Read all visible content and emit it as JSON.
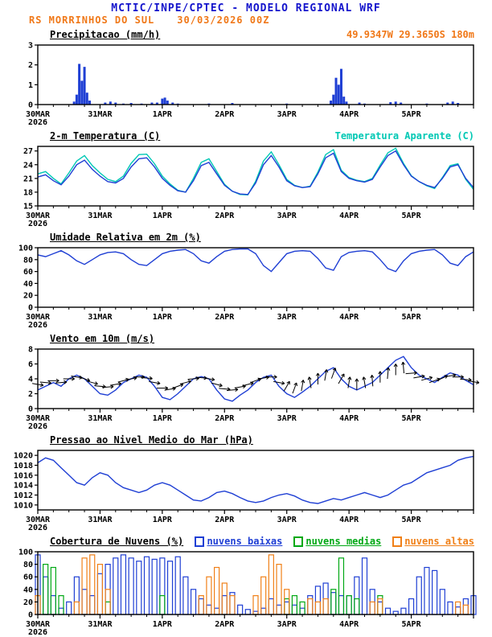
{
  "header": {
    "title": "MCTIC/INPE/CPTEC - MODELO REGIONAL WRF",
    "station": "RS MORRINHOS DO SUL",
    "run": "30/03/2026 00Z",
    "coordinates": "49.9347W 29.3650S 180m"
  },
  "colors": {
    "title_blue": "#1414cc",
    "orange": "#f07818",
    "line_blue": "#1f3fd4",
    "cyan": "#00c8b4",
    "green": "#00a814",
    "black": "#000000"
  },
  "x_axis": {
    "hours_total": 168,
    "tick_labels": [
      "30MAR",
      "31MAR",
      "1APR",
      "2APR",
      "3APR",
      "4APR",
      "5APR"
    ],
    "year_label": "2026"
  },
  "chart_data": [
    {
      "id": "precipitation",
      "type": "bar",
      "title": "Precipitacao (mm/h)",
      "ylim": [
        0,
        3
      ],
      "yticks": [
        0,
        1,
        2,
        3
      ],
      "series": [
        {
          "name": "precipitacao",
          "color": "#1f3fd4",
          "points": [
            [
              14,
              0.15
            ],
            [
              15,
              0.5
            ],
            [
              16,
              2.05
            ],
            [
              17,
              1.2
            ],
            [
              18,
              1.9
            ],
            [
              19,
              0.6
            ],
            [
              20,
              0.2
            ],
            [
              26,
              0.1
            ],
            [
              28,
              0.15
            ],
            [
              30,
              0.1
            ],
            [
              33,
              0.05
            ],
            [
              36,
              0.08
            ],
            [
              40,
              0.05
            ],
            [
              44,
              0.1
            ],
            [
              46,
              0.1
            ],
            [
              48,
              0.3
            ],
            [
              49,
              0.35
            ],
            [
              50,
              0.2
            ],
            [
              52,
              0.1
            ],
            [
              54,
              0.05
            ],
            [
              66,
              0.05
            ],
            [
              75,
              0.08
            ],
            [
              96,
              0.05
            ],
            [
              113,
              0.2
            ],
            [
              114,
              0.5
            ],
            [
              115,
              1.35
            ],
            [
              116,
              1.0
            ],
            [
              117,
              1.8
            ],
            [
              118,
              0.4
            ],
            [
              119,
              0.15
            ],
            [
              124,
              0.1
            ],
            [
              126,
              0.05
            ],
            [
              136,
              0.12
            ],
            [
              138,
              0.15
            ],
            [
              140,
              0.1
            ],
            [
              150,
              0.05
            ],
            [
              158,
              0.1
            ],
            [
              160,
              0.15
            ],
            [
              162,
              0.08
            ]
          ]
        }
      ]
    },
    {
      "id": "temperature",
      "type": "line",
      "title": "2-m Temperatura (C)",
      "right_label": "Temperatura Aparente (C)",
      "ylim": [
        15,
        28
      ],
      "yticks": [
        15,
        18,
        21,
        24,
        27
      ],
      "step_hours": 3,
      "series": [
        {
          "name": "Temperatura Aparente (C)",
          "color": "#00c8b4",
          "values": [
            22.0,
            22.5,
            21.0,
            19.8,
            22.2,
            24.8,
            26.0,
            23.8,
            22.2,
            20.8,
            20.3,
            21.5,
            24.3,
            26.2,
            26.3,
            24.2,
            21.5,
            19.8,
            18.4,
            18.0,
            21.0,
            24.5,
            25.3,
            22.5,
            19.7,
            18.2,
            17.5,
            17.4,
            20.4,
            24.8,
            26.8,
            24.0,
            20.8,
            19.5,
            19.0,
            19.3,
            22.4,
            26.2,
            27.3,
            22.8,
            21.2,
            20.6,
            20.3,
            21.0,
            23.9,
            26.6,
            27.6,
            24.3,
            21.6,
            20.3,
            19.4,
            18.8,
            21.2,
            23.8,
            24.2,
            20.8,
            18.6
          ]
        },
        {
          "name": "2-m Temperatura (C)",
          "color": "#1f3fd4",
          "values": [
            21.3,
            21.8,
            20.5,
            19.6,
            21.5,
            24.0,
            25.0,
            23.0,
            21.5,
            20.3,
            20.0,
            21.0,
            23.5,
            25.3,
            25.5,
            23.5,
            21.0,
            19.5,
            18.3,
            18.0,
            20.5,
            23.8,
            24.5,
            22.0,
            19.5,
            18.2,
            17.6,
            17.5,
            20.0,
            24.0,
            26.0,
            23.5,
            20.5,
            19.4,
            19.0,
            19.2,
            22.0,
            25.5,
            26.5,
            22.5,
            21.0,
            20.5,
            20.2,
            20.8,
            23.5,
            26.0,
            27.0,
            24.0,
            21.5,
            20.3,
            19.5,
            19.0,
            21.0,
            23.5,
            24.0,
            21.0,
            19.0
          ]
        }
      ]
    },
    {
      "id": "humidity",
      "type": "line",
      "title": "Umidade Relativa em 2m (%)",
      "ylim": [
        0,
        100
      ],
      "yticks": [
        0,
        20,
        40,
        60,
        80,
        100
      ],
      "step_hours": 3,
      "series": [
        {
          "name": "umidade relativa",
          "color": "#1f3fd4",
          "values": [
            88,
            85,
            90,
            95,
            88,
            78,
            72,
            80,
            88,
            92,
            93,
            90,
            80,
            72,
            70,
            80,
            90,
            94,
            96,
            97,
            90,
            78,
            74,
            85,
            94,
            97,
            98,
            98,
            90,
            70,
            60,
            75,
            90,
            94,
            95,
            94,
            82,
            66,
            62,
            85,
            92,
            94,
            95,
            93,
            80,
            65,
            60,
            78,
            90,
            94,
            96,
            97,
            88,
            74,
            70,
            85,
            93
          ]
        }
      ]
    },
    {
      "id": "wind",
      "type": "line",
      "title": "Vento em 10m (m/s)",
      "ylim": [
        0,
        8
      ],
      "yticks": [
        0,
        2,
        4,
        6,
        8
      ],
      "step_hours": 3,
      "series": [
        {
          "name": "vento 10m",
          "color": "#1f3fd4",
          "values": [
            2.5,
            3.0,
            3.5,
            3.0,
            4.0,
            4.5,
            4.0,
            3.0,
            2.0,
            1.8,
            2.5,
            3.5,
            4.0,
            4.5,
            4.2,
            3.0,
            1.5,
            1.2,
            2.0,
            3.0,
            4.0,
            4.3,
            4.0,
            2.5,
            1.3,
            1.0,
            1.8,
            2.5,
            3.5,
            4.2,
            4.5,
            3.0,
            2.0,
            1.5,
            2.2,
            3.0,
            4.0,
            5.0,
            5.5,
            4.0,
            3.0,
            2.5,
            3.0,
            3.5,
            4.5,
            5.5,
            6.5,
            7.0,
            5.5,
            4.5,
            4.0,
            3.5,
            4.2,
            4.8,
            4.5,
            3.8,
            3.2
          ]
        }
      ],
      "arrows": {
        "color": "#000000",
        "dirs_deg": [
          100,
          95,
          90,
          85,
          90,
          100,
          110,
          105,
          95,
          85,
          80,
          75,
          80,
          90,
          95,
          100,
          90,
          80,
          70,
          75,
          85,
          95,
          100,
          105,
          95,
          85,
          80,
          75,
          70,
          80,
          90,
          100,
          30,
          20,
          10,
          350,
          0,
          10,
          20,
          30,
          10,
          0,
          350,
          355,
          0,
          5,
          0,
          355,
          85,
          80,
          75,
          70,
          65,
          80,
          90,
          95,
          100
        ]
      }
    },
    {
      "id": "pressure",
      "type": "line",
      "title": "Pressao ao Nivel Medio do Mar (hPa)",
      "ylim": [
        1009,
        1021
      ],
      "yticks": [
        1010,
        1012,
        1014,
        1016,
        1018,
        1020
      ],
      "step_hours": 3,
      "series": [
        {
          "name": "pressao nivel do mar",
          "color": "#1f3fd4",
          "values": [
            1018.5,
            1019.5,
            1019.0,
            1017.5,
            1016.0,
            1014.5,
            1014.0,
            1015.5,
            1016.5,
            1016.0,
            1014.5,
            1013.5,
            1013.0,
            1012.5,
            1013.0,
            1014.0,
            1014.5,
            1014.0,
            1013.0,
            1012.0,
            1011.0,
            1010.8,
            1011.5,
            1012.5,
            1012.8,
            1012.3,
            1011.5,
            1010.8,
            1010.5,
            1010.8,
            1011.5,
            1012.0,
            1012.3,
            1011.8,
            1011.0,
            1010.5,
            1010.3,
            1010.8,
            1011.3,
            1011.0,
            1011.5,
            1012.0,
            1012.5,
            1012.0,
            1011.5,
            1012.0,
            1013.0,
            1014.0,
            1014.5,
            1015.5,
            1016.5,
            1017.0,
            1017.5,
            1018.0,
            1019.0,
            1019.5,
            1019.8
          ]
        }
      ]
    },
    {
      "id": "clouds",
      "type": "outline-bar",
      "title": "Cobertura de Nuvens (%)",
      "ylim": [
        0,
        100
      ],
      "yticks": [
        0,
        20,
        40,
        60,
        80,
        100
      ],
      "step_hours": 3,
      "series": [
        {
          "name": "nuvens baixas",
          "color": "#1f3fd4",
          "values": [
            95,
            60,
            30,
            10,
            20,
            60,
            40,
            30,
            65,
            80,
            90,
            95,
            90,
            85,
            92,
            88,
            90,
            85,
            92,
            60,
            40,
            25,
            15,
            10,
            30,
            35,
            15,
            8,
            5,
            10,
            25,
            15,
            20,
            15,
            10,
            30,
            45,
            50,
            35,
            30,
            30,
            60,
            90,
            40,
            20,
            10,
            5,
            10,
            25,
            60,
            75,
            70,
            40,
            20,
            12,
            25,
            30
          ]
        },
        {
          "name": "nuvens medias",
          "color": "#00a814",
          "values": [
            0,
            80,
            75,
            30,
            0,
            0,
            0,
            0,
            0,
            20,
            0,
            0,
            0,
            0,
            0,
            0,
            30,
            0,
            0,
            0,
            0,
            0,
            0,
            0,
            0,
            0,
            0,
            0,
            0,
            0,
            0,
            0,
            25,
            30,
            20,
            0,
            0,
            0,
            40,
            90,
            30,
            25,
            0,
            0,
            30,
            0,
            0,
            0,
            0,
            0,
            0,
            0,
            0,
            0,
            0,
            0,
            0
          ]
        },
        {
          "name": "nuvens altas",
          "color": "#f08018",
          "values": [
            30,
            0,
            0,
            0,
            0,
            20,
            90,
            95,
            80,
            40,
            0,
            0,
            0,
            0,
            0,
            0,
            0,
            0,
            0,
            0,
            0,
            30,
            60,
            75,
            50,
            30,
            0,
            0,
            30,
            60,
            95,
            80,
            40,
            0,
            0,
            25,
            20,
            25,
            0,
            0,
            0,
            0,
            0,
            20,
            25,
            0,
            0,
            0,
            0,
            0,
            0,
            0,
            0,
            0,
            20,
            15,
            0
          ]
        }
      ]
    }
  ]
}
